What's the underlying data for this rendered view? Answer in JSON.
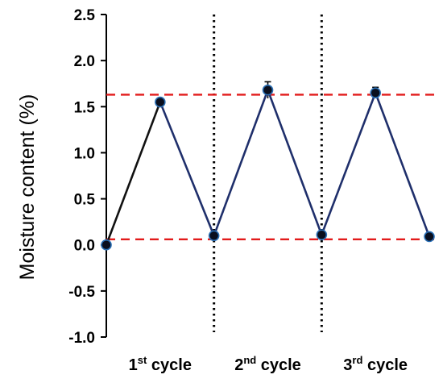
{
  "chart_data": {
    "type": "line",
    "ylabel": "Moisture content (%)",
    "xlabel": "",
    "ylim": [
      -1.0,
      2.5
    ],
    "yticks": [
      "2.5",
      "2.0",
      "1.5",
      "1.0",
      "0.5",
      "0.0",
      "-0.5",
      "-1.0"
    ],
    "ytick_values": [
      2.5,
      2.0,
      1.5,
      1.0,
      0.5,
      0.0,
      -0.5,
      -1.0
    ],
    "categories": [
      {
        "num": "1",
        "sup": "st",
        "text": " cycle"
      },
      {
        "num": "2",
        "sup": "nd",
        "text": " cycle"
      },
      {
        "num": "3",
        "sup": "rd",
        "text": " cycle"
      }
    ],
    "points": [
      {
        "x": 0,
        "y": 0.0,
        "err": 0.0
      },
      {
        "x": 1,
        "y": 1.55,
        "err": 0.03
      },
      {
        "x": 2,
        "y": 0.1,
        "err": 0.02
      },
      {
        "x": 3,
        "y": 1.68,
        "err": 0.09
      },
      {
        "x": 4,
        "y": 0.11,
        "err": 0.02
      },
      {
        "x": 5,
        "y": 1.65,
        "err": 0.06
      },
      {
        "x": 6,
        "y": 0.09,
        "err": 0.02
      }
    ],
    "reference_lines": [
      1.63,
      0.06
    ],
    "cycle_separators": [
      2,
      4
    ],
    "colors": {
      "first_segment": "#111111",
      "line": "#1f2f6b",
      "marker_fill": "#0a0f1e",
      "marker_edge": "#2a6fb5",
      "reference": "#e21b1b",
      "separator": "#000000",
      "axis": "#000000"
    },
    "grid": false,
    "legend": "none"
  }
}
